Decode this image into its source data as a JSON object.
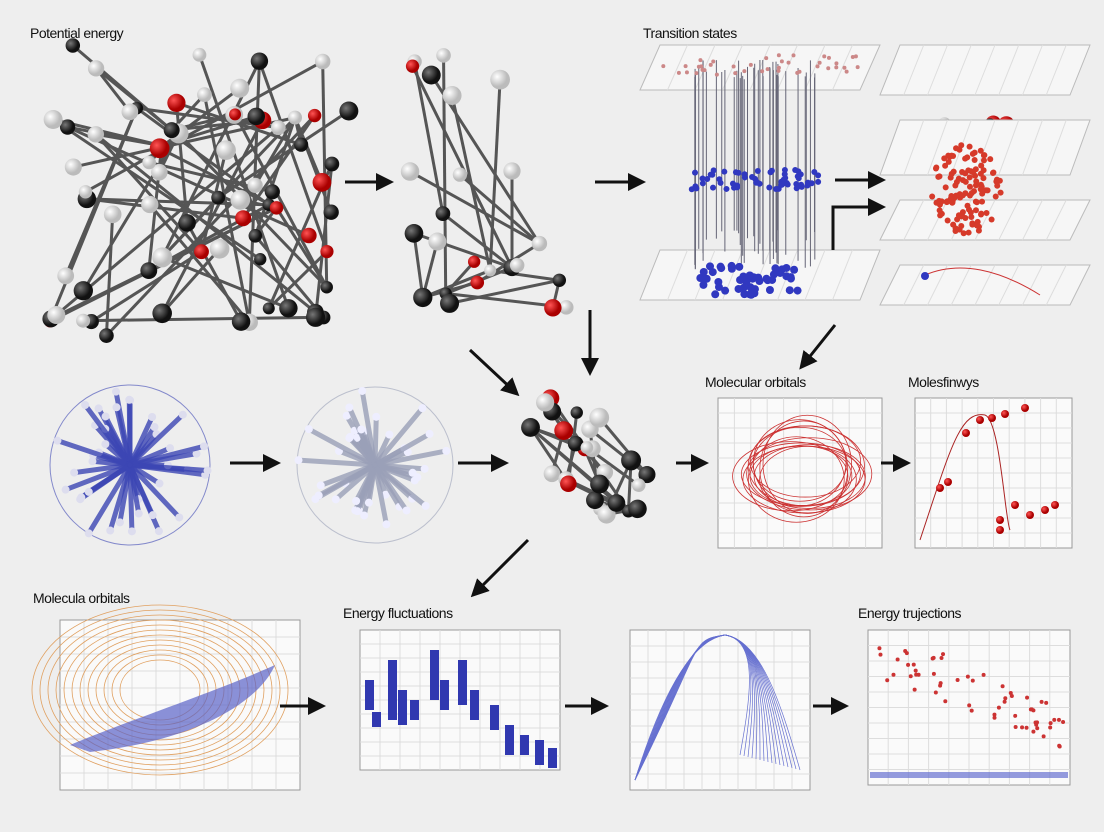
{
  "panels": [
    {
      "label": "Potential energy"
    },
    {
      "label": "Transition states"
    },
    {
      "label": "Molecular orbitals"
    },
    {
      "label": "Molesfinwys"
    },
    {
      "label": "Molecula orbitals"
    },
    {
      "label": "Energy fluctuations"
    },
    {
      "label": "Energy trujections"
    }
  ]
}
